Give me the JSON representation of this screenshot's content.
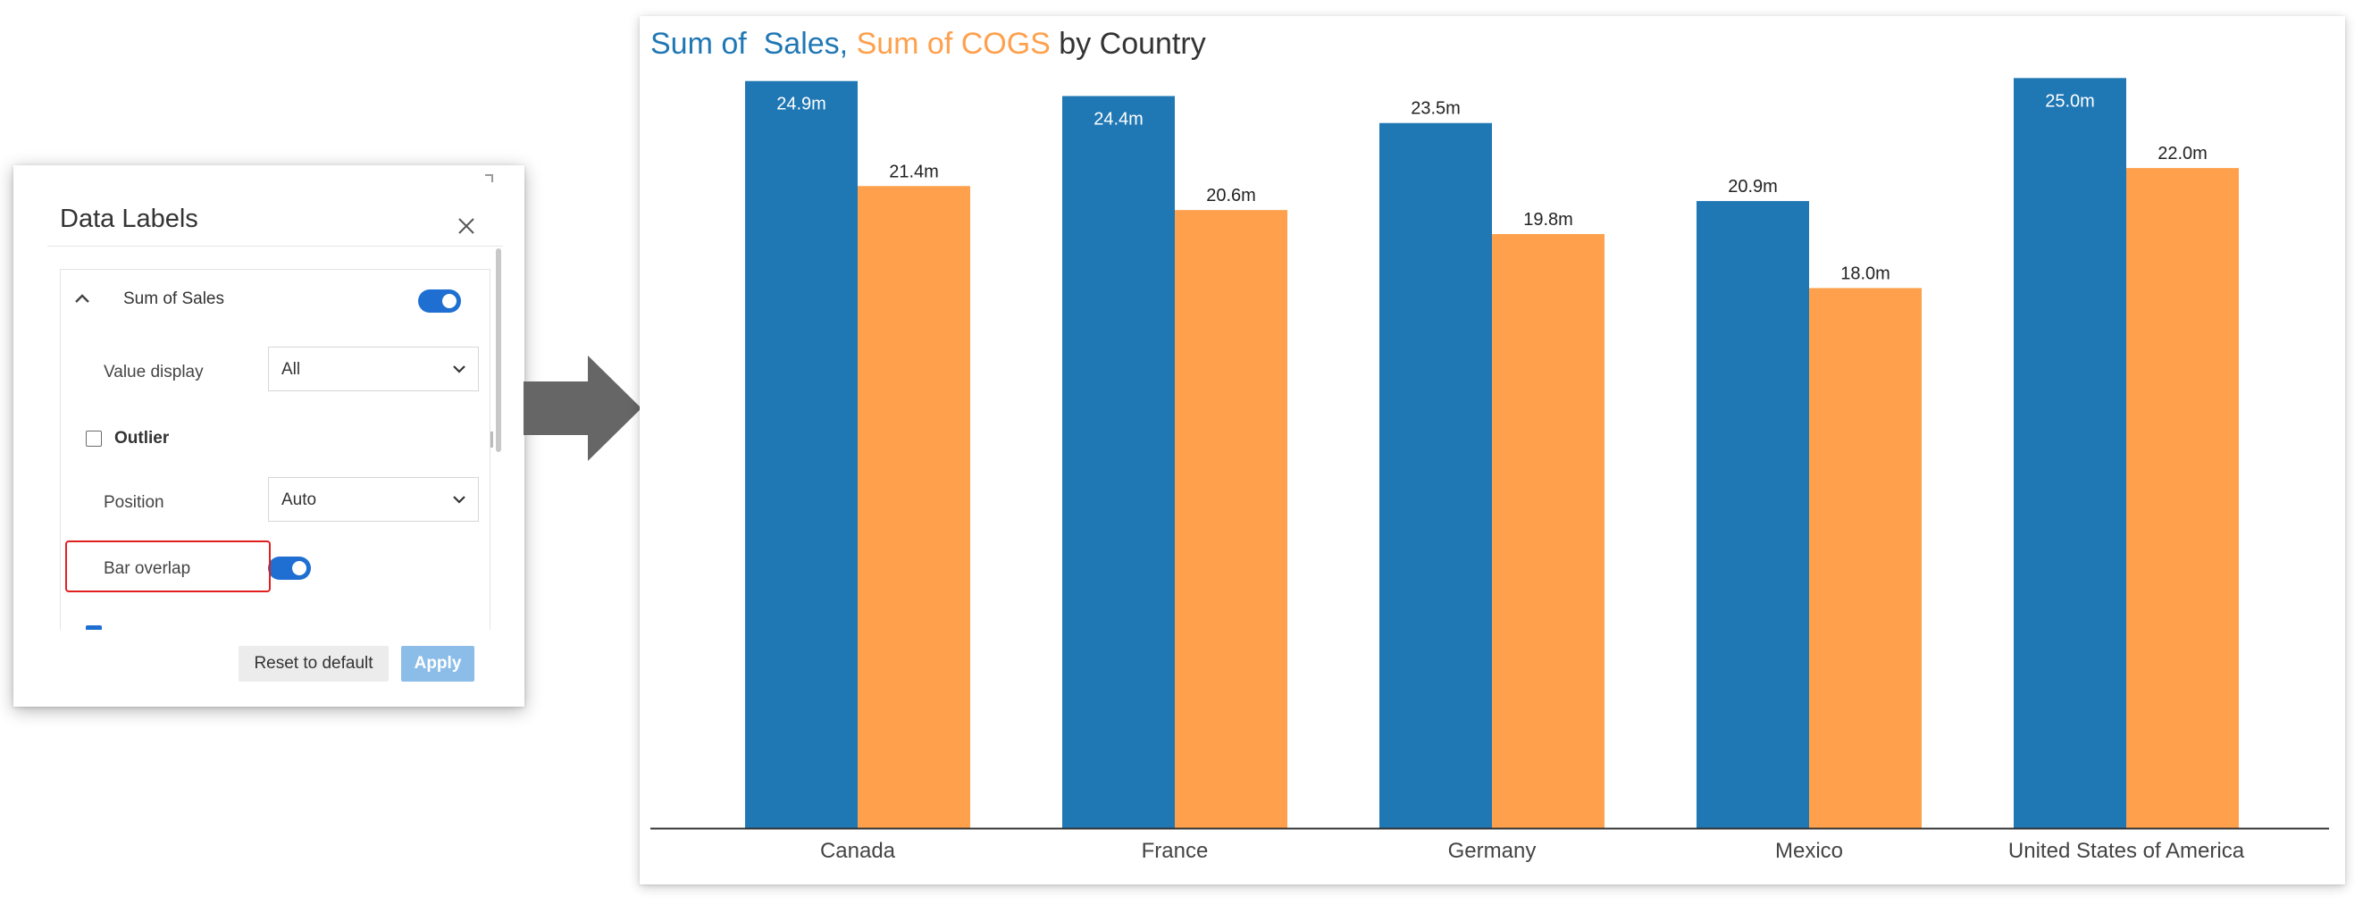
{
  "dialog": {
    "title": "Data Labels",
    "section": {
      "label": "Sum of Sales",
      "enabled": true,
      "value_display_label": "Value display",
      "value_display_value": "All",
      "outlier_label": "Outlier",
      "outlier_checked": false,
      "position_label": "Position",
      "position_value": "Auto",
      "bar_overlap_label": "Bar overlap",
      "bar_overlap_enabled": true,
      "partial_checkbox_checked": true
    },
    "reset_label": "Reset to default",
    "apply_label": "Apply"
  },
  "colors": {
    "sales": "#1f77b4",
    "cogs": "#ffa04d",
    "accent": "#1e6fd1",
    "highlight": "#e02020",
    "arrow": "#666666"
  },
  "chart_data": {
    "type": "bar",
    "title_parts": [
      "Sum of  Sales",
      ", ",
      "Sum of COGS",
      " by Country"
    ],
    "categories": [
      "Canada",
      "France",
      "Germany",
      "Mexico",
      "United States of America"
    ],
    "series": [
      {
        "name": "Sum of  Sales",
        "values": [
          24.9,
          24.4,
          23.5,
          20.9,
          25.0
        ],
        "labels": [
          "24.9m",
          "24.4m",
          "23.5m",
          "20.9m",
          "25.0m"
        ]
      },
      {
        "name": "Sum of COGS",
        "values": [
          21.4,
          20.6,
          19.8,
          18.0,
          22.0
        ],
        "labels": [
          "21.4m",
          "20.6m",
          "19.8m",
          "18.0m",
          "22.0m"
        ]
      }
    ],
    "ylim": [
      0,
      25.1
    ],
    "grid": false,
    "legend": "none"
  }
}
